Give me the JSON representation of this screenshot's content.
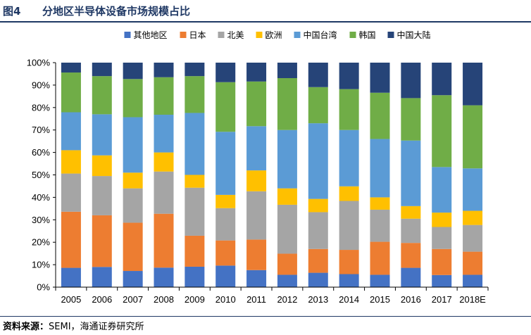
{
  "header": {
    "figure_label": "图4",
    "title": "分地区半导体设备市场规模占比"
  },
  "source": {
    "label": "资料来源：",
    "text": "SEMI，海通证券研究所"
  },
  "chart_data": {
    "type": "bar",
    "stacked": true,
    "title": "分地区半导体设备市场规模占比",
    "xlabel": "",
    "ylabel": "",
    "ylim": [
      0,
      100
    ],
    "yticks": [
      "0%",
      "10%",
      "20%",
      "30%",
      "40%",
      "50%",
      "60%",
      "70%",
      "80%",
      "90%",
      "100%"
    ],
    "legend_position": "top",
    "categories": [
      "2005",
      "2006",
      "2007",
      "2008",
      "2009",
      "2010",
      "2011",
      "2012",
      "2013",
      "2014",
      "2015",
      "2016",
      "2017",
      "2018E"
    ],
    "series": [
      {
        "name": "其他地区",
        "color": "#4472c4",
        "values": [
          8.6,
          9.0,
          7.2,
          8.7,
          9.1,
          9.6,
          7.6,
          5.5,
          6.4,
          5.8,
          5.5,
          8.6,
          5.4,
          5.5
        ]
      },
      {
        "name": "日本",
        "color": "#ed7d31",
        "values": [
          25.0,
          23.0,
          21.5,
          24.0,
          13.8,
          11.2,
          13.6,
          9.4,
          10.6,
          10.8,
          14.7,
          11.1,
          11.6,
          10.3
        ]
      },
      {
        "name": "北美",
        "color": "#a5a5a5",
        "values": [
          17.0,
          17.5,
          15.3,
          18.8,
          21.4,
          14.4,
          21.5,
          21.8,
          16.4,
          21.8,
          14.3,
          10.8,
          9.8,
          11.9
        ]
      },
      {
        "name": "欧洲",
        "color": "#ffc000",
        "values": [
          10.4,
          9.2,
          7.0,
          8.5,
          5.7,
          5.9,
          9.3,
          7.3,
          5.9,
          6.5,
          5.5,
          5.6,
          6.4,
          6.3
        ]
      },
      {
        "name": "中国台湾",
        "color": "#5b9bd5",
        "values": [
          16.9,
          18.3,
          24.7,
          16.8,
          27.6,
          28.1,
          19.7,
          26.0,
          33.7,
          25.1,
          26.0,
          29.2,
          20.3,
          18.9
        ]
      },
      {
        "name": "韩国",
        "color": "#70ad47",
        "values": [
          17.7,
          17.0,
          17.0,
          16.7,
          16.4,
          22.1,
          19.9,
          23.1,
          16.1,
          18.2,
          20.6,
          18.9,
          32.0,
          28.1
        ]
      },
      {
        "name": "中国大陆",
        "color": "#264478",
        "values": [
          4.4,
          6.0,
          7.3,
          6.5,
          6.0,
          8.7,
          8.4,
          6.9,
          10.9,
          11.8,
          13.4,
          15.8,
          14.5,
          19.0
        ]
      }
    ]
  }
}
